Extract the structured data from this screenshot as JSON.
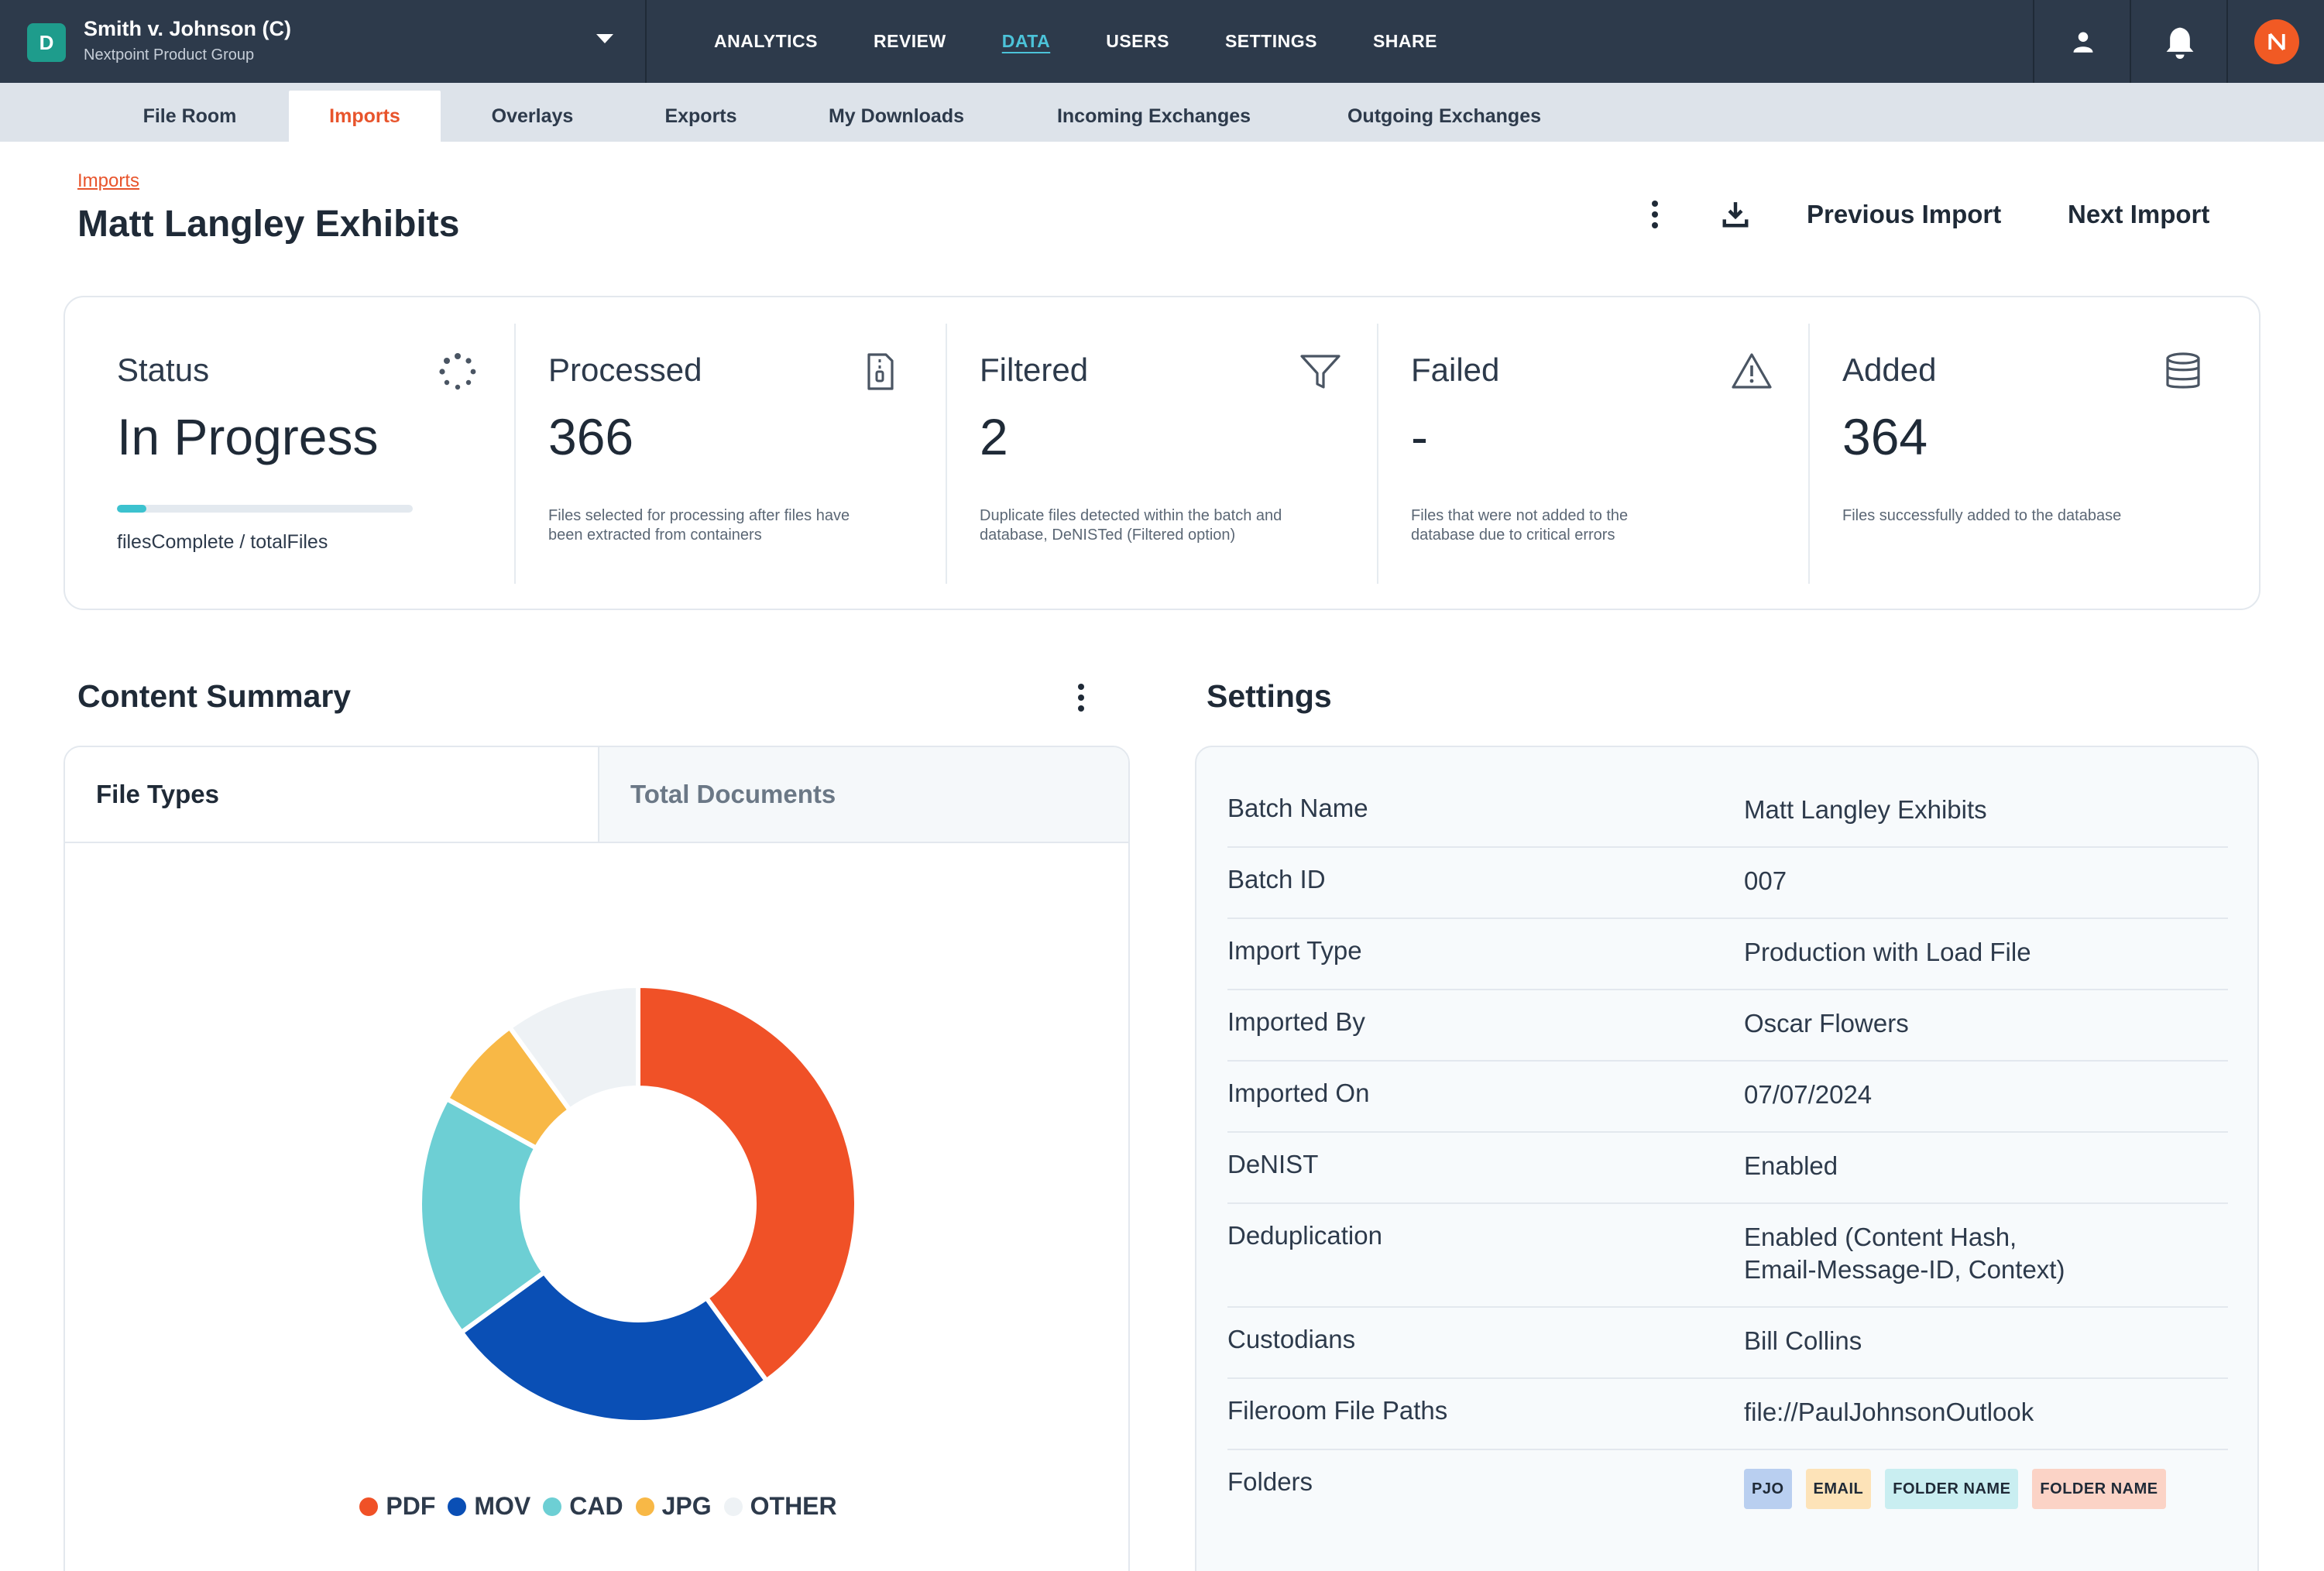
{
  "case": {
    "badge": "D",
    "title": "Smith v. Johnson (C)",
    "subtitle": "Nextpoint Product Group"
  },
  "nav": {
    "items": [
      {
        "label": "ANALYTICS"
      },
      {
        "label": "REVIEW"
      },
      {
        "label": "DATA"
      },
      {
        "label": "USERS"
      },
      {
        "label": "SETTINGS"
      },
      {
        "label": "SHARE"
      }
    ],
    "active": "DATA"
  },
  "topbar_icons": [
    "user-icon",
    "bell-icon",
    "brand-avatar-icon"
  ],
  "subnav": {
    "tabs": [
      {
        "label": "File Room"
      },
      {
        "label": "Imports"
      },
      {
        "label": "Overlays"
      },
      {
        "label": "Exports"
      },
      {
        "label": "My Downloads"
      },
      {
        "label": "Incoming Exchanges"
      },
      {
        "label": "Outgoing Exchanges"
      }
    ],
    "active": "Imports"
  },
  "header": {
    "breadcrumb": "Imports",
    "title": "Matt Langley Exhibits",
    "prev_label": "Previous Import",
    "next_label": "Next Import"
  },
  "stats": {
    "status": {
      "label": "Status",
      "value": "In Progress",
      "progress": 0.1,
      "progress_text": "filesComplete / totalFiles",
      "icon": "spinner-icon"
    },
    "processed": {
      "label": "Processed",
      "value": "366",
      "desc": "Files selected for processing after files have been extracted from containers",
      "icon": "file-zip-icon"
    },
    "filtered": {
      "label": "Filtered",
      "value": "2",
      "desc": "Duplicate files detected within the batch and database, DeNISTed (Filtered option)",
      "icon": "filter-icon"
    },
    "failed": {
      "label": "Failed",
      "value": "-",
      "desc": "Files that were not added to the database due to critical errors",
      "icon": "warning-icon"
    },
    "added": {
      "label": "Added",
      "value": "364",
      "desc": "Files successfully added to the database",
      "icon": "database-icon"
    }
  },
  "content_summary": {
    "title": "Content Summary",
    "tabs": [
      {
        "label": "File Types"
      },
      {
        "label": "Total Documents"
      }
    ],
    "active_tab": "File Types"
  },
  "chart_data": {
    "type": "pie",
    "donut": true,
    "categories": [
      "PDF",
      "MOV",
      "CAD",
      "JPG",
      "OTHER"
    ],
    "values": [
      40,
      25,
      18,
      7,
      10
    ],
    "colors": [
      "#f05127",
      "#0a4fb5",
      "#6dcfd4",
      "#f8b846",
      "#eef2f5"
    ],
    "legend": "bottom"
  },
  "settings": {
    "title": "Settings",
    "rows": [
      {
        "key": "Batch Name",
        "value": "Matt Langley Exhibits"
      },
      {
        "key": "Batch ID",
        "value": "007"
      },
      {
        "key": "Import Type",
        "value": "Production with Load File"
      },
      {
        "key": "Imported By",
        "value": "Oscar Flowers"
      },
      {
        "key": "Imported On",
        "value": "07/07/2024"
      },
      {
        "key": "DeNIST",
        "value": "Enabled"
      },
      {
        "key": "Deduplication",
        "value": "Enabled (Content Hash,",
        "value2": "Email-Message-ID, Context)"
      },
      {
        "key": "Custodians",
        "value": "Bill Collins"
      },
      {
        "key": "Fileroom File Paths",
        "value": "file://PaulJohnsonOutlook"
      },
      {
        "key": "Folders",
        "chips": [
          {
            "label": "PJO",
            "color": "#b9cff0"
          },
          {
            "label": "EMAIL",
            "color": "#fde3b8"
          },
          {
            "label": "FOLDER NAME",
            "color": "#c9eef1"
          },
          {
            "label": "FOLDER NAME",
            "color": "#fbd3c6"
          }
        ]
      }
    ]
  }
}
